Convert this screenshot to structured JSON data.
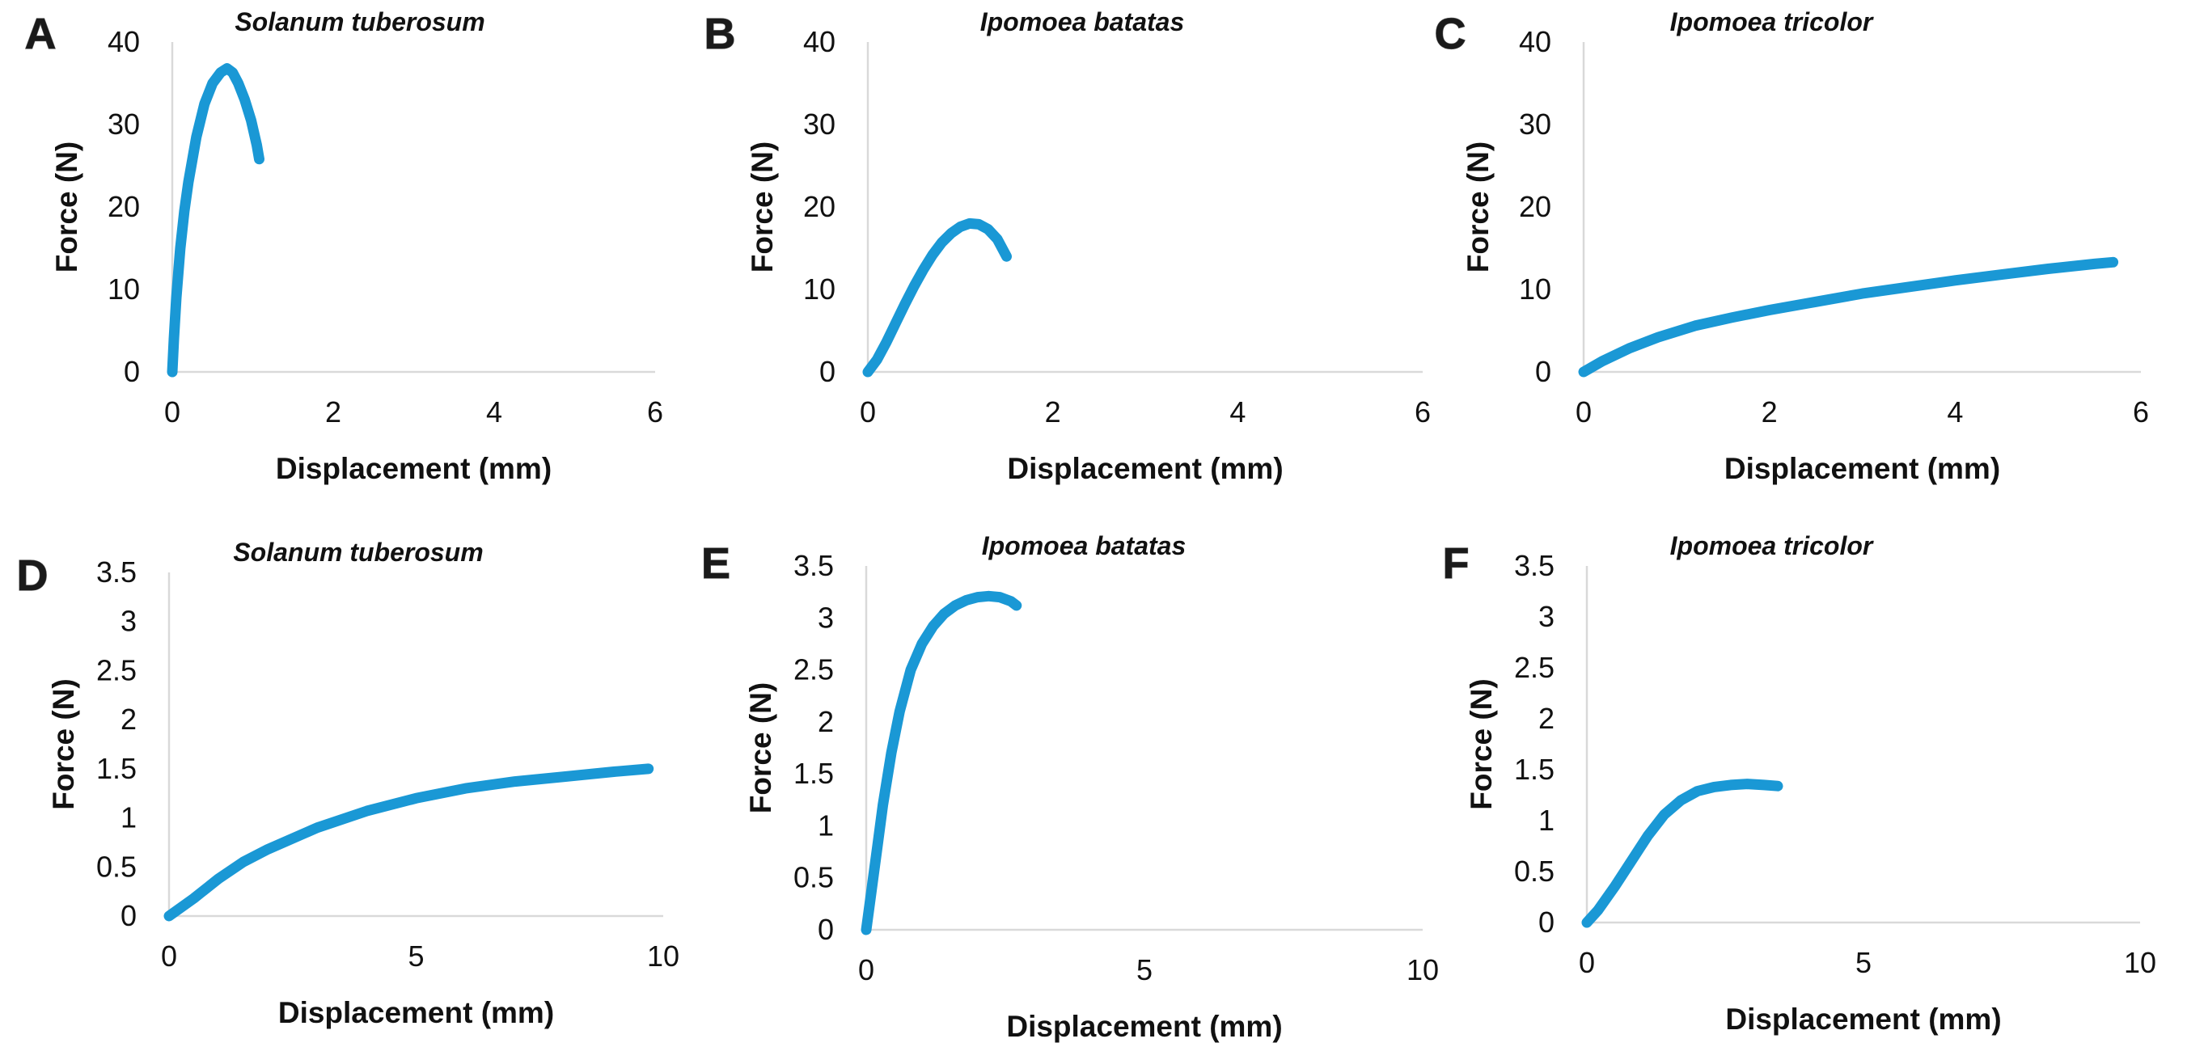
{
  "colors": {
    "series": "#1a98d5",
    "axis": "#d9d9d9",
    "text": "#111111"
  },
  "chart_data": [
    {
      "panel": "A",
      "type": "line",
      "title": "Solanum tuberosum",
      "xlabel": "Displacement (mm)",
      "ylabel": "Force (N)",
      "xlim": [
        0,
        6
      ],
      "ylim": [
        0,
        40
      ],
      "xticks": [
        "0",
        "2",
        "4",
        "6"
      ],
      "yticks": [
        "0",
        "10",
        "20",
        "30",
        "40"
      ],
      "grid": false,
      "series": [
        {
          "name": "Solanum tuberosum",
          "x": [
            0,
            0.02,
            0.05,
            0.1,
            0.15,
            0.2,
            0.3,
            0.4,
            0.5,
            0.6,
            0.68,
            0.75,
            0.82,
            0.9,
            0.98,
            1.05,
            1.08
          ],
          "y": [
            0,
            4,
            9,
            15,
            19.5,
            23,
            28.5,
            32.5,
            35,
            36.3,
            36.8,
            36.3,
            35,
            33,
            30.5,
            27.5,
            25.8
          ]
        }
      ]
    },
    {
      "panel": "B",
      "type": "line",
      "title": "Ipomoea batatas",
      "xlabel": "Displacement (mm)",
      "ylabel": "Force (N)",
      "xlim": [
        0,
        6
      ],
      "ylim": [
        0,
        40
      ],
      "xticks": [
        "0",
        "2",
        "4",
        "6"
      ],
      "yticks": [
        "0",
        "10",
        "20",
        "30",
        "40"
      ],
      "grid": false,
      "series": [
        {
          "name": "Ipomoea batatas",
          "x": [
            0,
            0.1,
            0.2,
            0.3,
            0.4,
            0.5,
            0.6,
            0.7,
            0.8,
            0.9,
            1.0,
            1.1,
            1.2,
            1.3,
            1.4,
            1.5
          ],
          "y": [
            0,
            1.5,
            3.6,
            5.9,
            8.2,
            10.4,
            12.4,
            14.2,
            15.7,
            16.8,
            17.6,
            18.0,
            17.9,
            17.3,
            16.1,
            14.0
          ]
        }
      ]
    },
    {
      "panel": "C",
      "type": "line",
      "title": "Ipomoea tricolor",
      "xlabel": "Displacement (mm)",
      "ylabel": "Force (N)",
      "xlim": [
        0,
        6
      ],
      "ylim": [
        0,
        40
      ],
      "xticks": [
        "0",
        "2",
        "4",
        "6"
      ],
      "yticks": [
        "0",
        "10",
        "20",
        "30",
        "40"
      ],
      "grid": false,
      "series": [
        {
          "name": "Ipomoea tricolor",
          "x": [
            0,
            0.2,
            0.5,
            0.8,
            1.2,
            1.6,
            2.0,
            2.5,
            3.0,
            3.5,
            4.0,
            4.5,
            5.0,
            5.5,
            5.7
          ],
          "y": [
            0,
            1.3,
            2.9,
            4.2,
            5.6,
            6.6,
            7.5,
            8.5,
            9.5,
            10.3,
            11.1,
            11.8,
            12.5,
            13.1,
            13.3
          ]
        }
      ]
    },
    {
      "panel": "D",
      "type": "line",
      "title": "Solanum tuberosum",
      "xlabel": "Displacement (mm)",
      "ylabel": "Force (N)",
      "xlim": [
        0,
        10
      ],
      "ylim": [
        0,
        3.5
      ],
      "xticks": [
        "0",
        "5",
        "10"
      ],
      "yticks": [
        "0",
        "0.5",
        "1",
        "1.5",
        "2",
        "2.5",
        "3",
        "3.5"
      ],
      "grid": false,
      "series": [
        {
          "name": "Solanum tuberosum",
          "x": [
            0,
            0.5,
            1,
            1.5,
            2,
            3,
            4,
            5,
            6,
            7,
            8,
            9,
            9.7
          ],
          "y": [
            0,
            0.18,
            0.38,
            0.55,
            0.68,
            0.9,
            1.07,
            1.2,
            1.3,
            1.37,
            1.42,
            1.47,
            1.5
          ]
        }
      ]
    },
    {
      "panel": "E",
      "type": "line",
      "title": "Ipomoea batatas",
      "xlabel": "Displacement (mm)",
      "ylabel": "Force (N)",
      "xlim": [
        0,
        10
      ],
      "ylim": [
        0,
        3.5
      ],
      "xticks": [
        "0",
        "5",
        "10"
      ],
      "yticks": [
        "0",
        "0.5",
        "1",
        "1.5",
        "2",
        "2.5",
        "3",
        "3.5"
      ],
      "grid": false,
      "series": [
        {
          "name": "Ipomoea batatas",
          "x": [
            0,
            0.1,
            0.2,
            0.3,
            0.45,
            0.6,
            0.8,
            1.0,
            1.2,
            1.4,
            1.6,
            1.8,
            2.0,
            2.2,
            2.4,
            2.6,
            2.7
          ],
          "y": [
            0,
            0.4,
            0.8,
            1.2,
            1.7,
            2.1,
            2.5,
            2.75,
            2.92,
            3.04,
            3.12,
            3.17,
            3.2,
            3.21,
            3.2,
            3.16,
            3.12
          ]
        }
      ]
    },
    {
      "panel": "F",
      "type": "line",
      "title": "Ipomoea tricolor",
      "xlabel": "Displacement (mm)",
      "ylabel": "Force (N)",
      "xlim": [
        0,
        10
      ],
      "ylim": [
        0,
        3.5
      ],
      "xticks": [
        "0",
        "5",
        "10"
      ],
      "yticks": [
        "0",
        "0.5",
        "1",
        "1.5",
        "2",
        "2.5",
        "3",
        "3.5"
      ],
      "grid": false,
      "series": [
        {
          "name": "Ipomoea tricolor",
          "x": [
            0,
            0.2,
            0.5,
            0.8,
            1.1,
            1.4,
            1.7,
            2.0,
            2.3,
            2.6,
            2.9,
            3.2,
            3.45
          ],
          "y": [
            0,
            0.12,
            0.35,
            0.6,
            0.85,
            1.06,
            1.2,
            1.29,
            1.33,
            1.35,
            1.36,
            1.35,
            1.34
          ]
        }
      ]
    }
  ]
}
